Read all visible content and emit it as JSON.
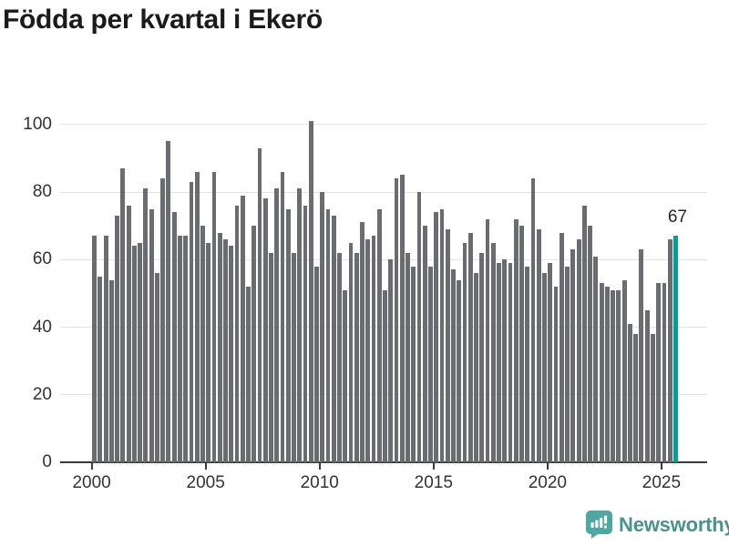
{
  "title": "Födda per kvartal i Ekerö",
  "chart_data": {
    "type": "bar",
    "title": "Födda per kvartal i Ekerö",
    "x_start_year": 2000,
    "x_start_quarter": 1,
    "x_tick_years": [
      2000,
      2005,
      2010,
      2015,
      2020,
      2025
    ],
    "y_ticks": [
      0,
      20,
      40,
      60,
      80,
      100
    ],
    "ylim": [
      0,
      100
    ],
    "grid": "horizontal",
    "legend": "none",
    "series": [
      {
        "name": "Födda per kvartal",
        "values": [
          67,
          55,
          67,
          54,
          73,
          87,
          76,
          64,
          65,
          81,
          75,
          56,
          84,
          95,
          74,
          67,
          67,
          83,
          86,
          70,
          65,
          86,
          68,
          66,
          64,
          76,
          79,
          52,
          70,
          93,
          78,
          62,
          81,
          86,
          75,
          62,
          81,
          76,
          101,
          58,
          80,
          75,
          73,
          62,
          51,
          65,
          62,
          71,
          66,
          67,
          75,
          51,
          60,
          84,
          85,
          62,
          58,
          80,
          70,
          58,
          74,
          75,
          69,
          57,
          54,
          65,
          68,
          56,
          62,
          72,
          65,
          59,
          60,
          59,
          72,
          70,
          58,
          84,
          69,
          56,
          59,
          52,
          68,
          58,
          63,
          66,
          76,
          70,
          61,
          53,
          52,
          51,
          51,
          54,
          41,
          38,
          63,
          45,
          38,
          53,
          53,
          66,
          67
        ]
      }
    ],
    "highlight_last_bar": true,
    "last_bar_label": "67",
    "bar_color": "#6b6b72",
    "highlight_color": "#00a09a",
    "gridline_color": "#e4e4e4",
    "axis_color": "#3b3b3b",
    "text_color": "#333333"
  },
  "footer": {
    "brand": "Newsworthy",
    "logo_color": "#4ca8a1",
    "brand_text_color": "#48938d"
  }
}
